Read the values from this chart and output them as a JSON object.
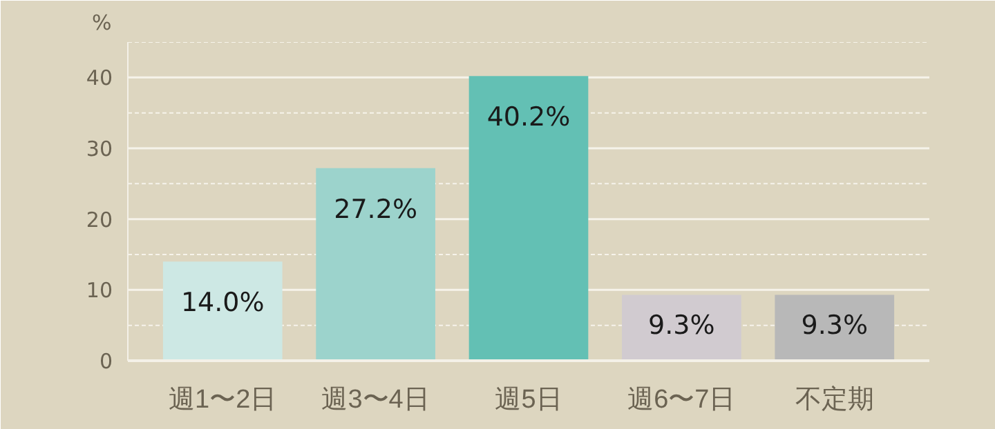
{
  "chart_data": {
    "type": "bar",
    "ylabel": "%",
    "categories": [
      "週1〜2日",
      "週3〜4日",
      "週5日",
      "週6〜7日",
      "不定期"
    ],
    "values": [
      14.0,
      27.2,
      40.2,
      9.3,
      9.3
    ],
    "colors": [
      "#cde8e4",
      "#9cd3cc",
      "#63c0b4",
      "#d1cbd0",
      "#b8b8b8"
    ],
    "value_labels": [
      "14.0%",
      "27.2%",
      "40.2%",
      "9.3%",
      "9.3%"
    ],
    "ylim": [
      0,
      45
    ],
    "yticks": [
      0,
      {
        "value": 5,
        "label": null
      },
      10,
      {
        "value": 15,
        "label": null
      },
      20,
      {
        "value": 25,
        "label": null
      },
      30,
      {
        "value": 35,
        "label": null
      },
      40,
      {
        "value": 45,
        "label": null
      }
    ],
    "grid": "y"
  }
}
